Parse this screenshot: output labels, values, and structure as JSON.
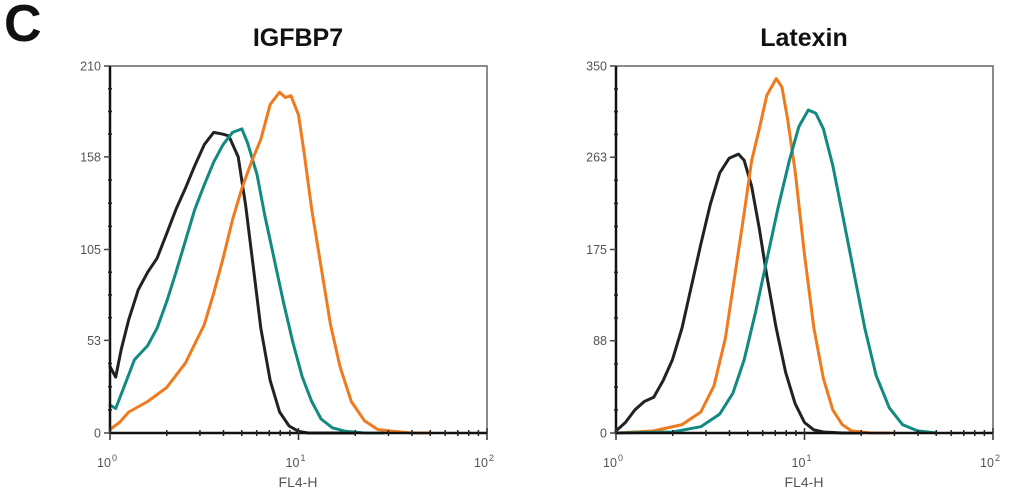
{
  "figure": {
    "panel_label": "C"
  },
  "colors": {
    "black_series": "#222222",
    "teal_series": "#138a80",
    "orange_series": "#f07a1e",
    "frame": "#555555",
    "tick_text": "#555555"
  },
  "chart_data": [
    {
      "type": "line",
      "title": "IGFBP7",
      "xlabel": "FL4-H",
      "ylabel": "",
      "xscale": "log",
      "xlim": [
        1,
        100
      ],
      "ylim": [
        0,
        210
      ],
      "x_ticks": [
        {
          "base": "10",
          "exp": "0",
          "value": 1
        },
        {
          "base": "10",
          "exp": "1",
          "value": 10
        },
        {
          "base": "10",
          "exp": "2",
          "value": 100
        }
      ],
      "y_ticks": [
        "0",
        "53",
        "105",
        "158",
        "210"
      ],
      "y_tick_values": [
        0,
        53,
        105,
        158,
        210
      ],
      "grid": false,
      "legend": null,
      "series": [
        {
          "name": "black",
          "color": "#222222",
          "log10_x": [
            0.0,
            0.03,
            0.06,
            0.1,
            0.15,
            0.2,
            0.25,
            0.3,
            0.35,
            0.4,
            0.45,
            0.5,
            0.55,
            0.6,
            0.63,
            0.68,
            0.72,
            0.76,
            0.8,
            0.85,
            0.9,
            0.95,
            1.0,
            1.05,
            1.1,
            1.2,
            1.3
          ],
          "y": [
            38,
            32,
            48,
            65,
            82,
            92,
            100,
            114,
            128,
            140,
            153,
            165,
            172,
            171,
            170,
            158,
            130,
            95,
            60,
            30,
            12,
            4,
            1,
            0,
            0,
            0,
            0
          ]
        },
        {
          "name": "teal",
          "color": "#138a80",
          "log10_x": [
            0.0,
            0.03,
            0.08,
            0.13,
            0.2,
            0.25,
            0.3,
            0.35,
            0.4,
            0.45,
            0.5,
            0.55,
            0.6,
            0.65,
            0.7,
            0.73,
            0.78,
            0.82,
            0.87,
            0.92,
            0.97,
            1.02,
            1.07,
            1.12,
            1.18,
            1.25,
            1.35,
            1.45
          ],
          "y": [
            16,
            14,
            28,
            42,
            50,
            60,
            75,
            92,
            110,
            128,
            142,
            155,
            165,
            172,
            174,
            166,
            148,
            125,
            100,
            75,
            52,
            32,
            18,
            8,
            3,
            1,
            0,
            0
          ]
        },
        {
          "name": "orange",
          "color": "#f07a1e",
          "log10_x": [
            0.0,
            0.05,
            0.1,
            0.2,
            0.3,
            0.4,
            0.5,
            0.55,
            0.6,
            0.65,
            0.7,
            0.75,
            0.8,
            0.85,
            0.9,
            0.93,
            0.96,
            1.0,
            1.03,
            1.07,
            1.12,
            1.17,
            1.22,
            1.28,
            1.35,
            1.42,
            1.5,
            1.6,
            1.7
          ],
          "y": [
            2,
            6,
            12,
            18,
            26,
            40,
            62,
            80,
            100,
            122,
            140,
            155,
            168,
            188,
            195,
            192,
            193,
            182,
            160,
            128,
            95,
            62,
            38,
            18,
            7,
            2,
            1,
            0,
            0
          ]
        }
      ]
    },
    {
      "type": "line",
      "title": "Latexin",
      "xlabel": "FL4-H",
      "ylabel": "",
      "xscale": "log",
      "xlim": [
        1,
        100
      ],
      "ylim": [
        0,
        350
      ],
      "x_ticks": [
        {
          "base": "10",
          "exp": "0",
          "value": 1
        },
        {
          "base": "10",
          "exp": "1",
          "value": 10
        },
        {
          "base": "10",
          "exp": "2",
          "value": 100
        }
      ],
      "y_ticks": [
        "0",
        "88",
        "175",
        "263",
        "350"
      ],
      "y_tick_values": [
        0,
        88,
        175,
        263,
        350
      ],
      "grid": false,
      "legend": null,
      "series": [
        {
          "name": "black",
          "color": "#222222",
          "log10_x": [
            0.0,
            0.05,
            0.1,
            0.15,
            0.2,
            0.25,
            0.3,
            0.35,
            0.4,
            0.45,
            0.5,
            0.55,
            0.6,
            0.65,
            0.68,
            0.72,
            0.76,
            0.8,
            0.85,
            0.9,
            0.95,
            1.0,
            1.05,
            1.1,
            1.2,
            1.3
          ],
          "y": [
            2,
            10,
            22,
            30,
            34,
            50,
            70,
            100,
            140,
            180,
            218,
            248,
            262,
            266,
            260,
            235,
            195,
            150,
            100,
            58,
            28,
            10,
            3,
            1,
            0,
            0
          ]
        },
        {
          "name": "orange",
          "color": "#f07a1e",
          "log10_x": [
            0.0,
            0.2,
            0.35,
            0.45,
            0.52,
            0.58,
            0.63,
            0.68,
            0.72,
            0.76,
            0.8,
            0.85,
            0.88,
            0.91,
            0.95,
            1.0,
            1.05,
            1.1,
            1.15,
            1.2,
            1.25,
            1.35,
            1.45
          ],
          "y": [
            0,
            2,
            8,
            20,
            45,
            90,
            150,
            210,
            260,
            290,
            322,
            338,
            330,
            300,
            250,
            170,
            100,
            52,
            22,
            8,
            2,
            0,
            0
          ]
        },
        {
          "name": "teal",
          "color": "#138a80",
          "log10_x": [
            0.0,
            0.3,
            0.45,
            0.55,
            0.62,
            0.68,
            0.74,
            0.8,
            0.86,
            0.92,
            0.97,
            1.02,
            1.06,
            1.1,
            1.15,
            1.2,
            1.26,
            1.32,
            1.38,
            1.45,
            1.52,
            1.6,
            1.7
          ],
          "y": [
            0,
            1,
            6,
            18,
            38,
            70,
            115,
            165,
            215,
            260,
            292,
            308,
            305,
            290,
            255,
            210,
            155,
            100,
            55,
            24,
            8,
            2,
            0
          ]
        }
      ]
    }
  ]
}
